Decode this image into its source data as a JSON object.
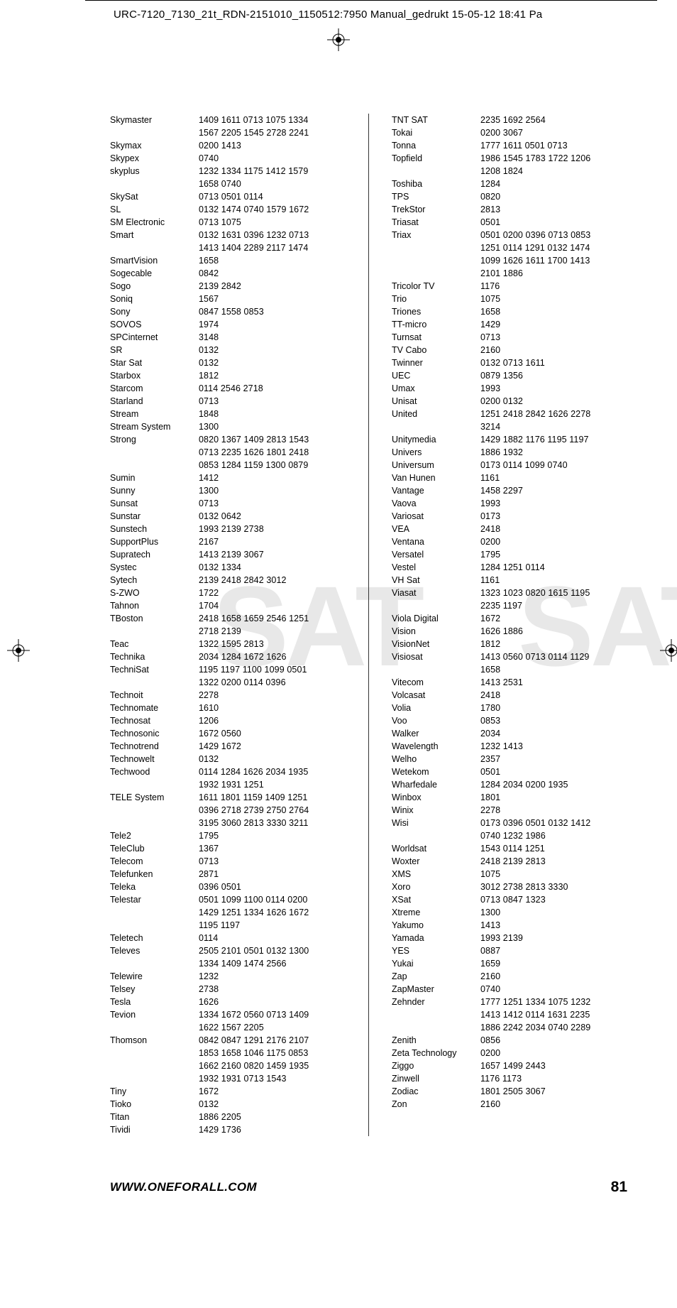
{
  "header": "URC-7120_7130_21t_RDN-2151010_1150512:7950 Manual_gedrukt  15-05-12  18:41  Pa",
  "watermark": "SAT",
  "footer": {
    "url": "WWW.ONEFORALL.COM",
    "page": "81"
  },
  "left": [
    {
      "b": "Skymaster",
      "c": "1409 1611 0713 1075 1334"
    },
    {
      "b": "",
      "c": "1567 2205 1545 2728 2241"
    },
    {
      "b": "Skymax",
      "c": "0200 1413"
    },
    {
      "b": "Skypex",
      "c": "0740"
    },
    {
      "b": "skyplus",
      "c": "1232 1334 1175 1412 1579"
    },
    {
      "b": "",
      "c": "1658 0740"
    },
    {
      "b": "SkySat",
      "c": "0713 0501 0114"
    },
    {
      "b": "SL",
      "c": "0132 1474 0740 1579 1672"
    },
    {
      "b": "SM Electronic",
      "c": "0713 1075"
    },
    {
      "b": "Smart",
      "c": "0132 1631 0396 1232 0713"
    },
    {
      "b": "",
      "c": "1413 1404 2289 2117 1474"
    },
    {
      "b": "SmartVision",
      "c": "1658"
    },
    {
      "b": "Sogecable",
      "c": "0842"
    },
    {
      "b": "Sogo",
      "c": "2139 2842"
    },
    {
      "b": "Soniq",
      "c": "1567"
    },
    {
      "b": "Sony",
      "c": "0847 1558 0853"
    },
    {
      "b": "SOVOS",
      "c": "1974"
    },
    {
      "b": "SPCinternet",
      "c": "3148"
    },
    {
      "b": "SR",
      "c": "0132"
    },
    {
      "b": "Star Sat",
      "c": "0132"
    },
    {
      "b": "Starbox",
      "c": "1812"
    },
    {
      "b": "Starcom",
      "c": "0114 2546 2718"
    },
    {
      "b": "Starland",
      "c": "0713"
    },
    {
      "b": "Stream",
      "c": "1848"
    },
    {
      "b": "Stream System",
      "c": "1300"
    },
    {
      "b": "Strong",
      "c": "0820 1367 1409 2813 1543"
    },
    {
      "b": "",
      "c": "0713 2235 1626 1801 2418"
    },
    {
      "b": "",
      "c": "0853 1284 1159 1300 0879"
    },
    {
      "b": "Sumin",
      "c": "1412"
    },
    {
      "b": "Sunny",
      "c": "1300"
    },
    {
      "b": "Sunsat",
      "c": "0713"
    },
    {
      "b": "Sunstar",
      "c": "0132 0642"
    },
    {
      "b": "Sunstech",
      "c": "1993 2139 2738"
    },
    {
      "b": "SupportPlus",
      "c": "2167"
    },
    {
      "b": "Supratech",
      "c": "1413 2139 3067"
    },
    {
      "b": "Systec",
      "c": "0132 1334"
    },
    {
      "b": "Sytech",
      "c": "2139 2418 2842 3012"
    },
    {
      "b": "S-ZWO",
      "c": "1722"
    },
    {
      "b": "Tahnon",
      "c": "1704"
    },
    {
      "b": "TBoston",
      "c": "2418 1658 1659 2546 1251"
    },
    {
      "b": "",
      "c": "2718 2139"
    },
    {
      "b": "Teac",
      "c": "1322 1595 2813"
    },
    {
      "b": "Technika",
      "c": "2034 1284 1672 1626"
    },
    {
      "b": "TechniSat",
      "c": "1195 1197 1100 1099 0501"
    },
    {
      "b": "",
      "c": "1322 0200 0114 0396"
    },
    {
      "b": "Technoit",
      "c": "2278"
    },
    {
      "b": "Technomate",
      "c": "1610"
    },
    {
      "b": "Technosat",
      "c": "1206"
    },
    {
      "b": "Technosonic",
      "c": "1672 0560"
    },
    {
      "b": "Technotrend",
      "c": "1429 1672"
    },
    {
      "b": "Technowelt",
      "c": "0132"
    },
    {
      "b": "Techwood",
      "c": "0114 1284 1626 2034 1935"
    },
    {
      "b": "",
      "c": "1932 1931 1251"
    },
    {
      "b": "TELE System",
      "c": "1611 1801 1159 1409 1251"
    },
    {
      "b": "",
      "c": "0396 2718 2739 2750 2764"
    },
    {
      "b": "",
      "c": "3195 3060 2813 3330 3211"
    },
    {
      "b": "Tele2",
      "c": "1795"
    },
    {
      "b": "TeleClub",
      "c": "1367"
    },
    {
      "b": "Telecom",
      "c": "0713"
    },
    {
      "b": "Telefunken",
      "c": "2871"
    },
    {
      "b": "Teleka",
      "c": "0396 0501"
    },
    {
      "b": "Telestar",
      "c": "0501 1099 1100 0114 0200"
    },
    {
      "b": "",
      "c": "1429 1251 1334 1626 1672"
    },
    {
      "b": "",
      "c": "1195 1197"
    },
    {
      "b": "Teletech",
      "c": "0114"
    },
    {
      "b": "Televes",
      "c": "2505 2101 0501 0132 1300"
    },
    {
      "b": "",
      "c": "1334 1409 1474 2566"
    },
    {
      "b": "Telewire",
      "c": "1232"
    },
    {
      "b": "Telsey",
      "c": "2738"
    },
    {
      "b": "Tesla",
      "c": "1626"
    },
    {
      "b": "Tevion",
      "c": "1334 1672 0560 0713 1409"
    },
    {
      "b": "",
      "c": "1622 1567 2205"
    },
    {
      "b": "Thomson",
      "c": "0842 0847 1291 2176 2107"
    },
    {
      "b": "",
      "c": "1853 1658 1046 1175 0853"
    },
    {
      "b": "",
      "c": "1662 2160 0820 1459 1935"
    },
    {
      "b": "",
      "c": "1932 1931 0713 1543"
    },
    {
      "b": "Tiny",
      "c": "1672"
    },
    {
      "b": "Tioko",
      "c": "0132"
    },
    {
      "b": "Titan",
      "c": "1886 2205"
    },
    {
      "b": "Tividi",
      "c": "1429 1736"
    }
  ],
  "right": [
    {
      "b": "TNT SAT",
      "c": "2235 1692 2564"
    },
    {
      "b": "Tokai",
      "c": "0200 3067"
    },
    {
      "b": "Tonna",
      "c": "1777 1611 0501 0713"
    },
    {
      "b": "Topfield",
      "c": "1986 1545 1783 1722 1206"
    },
    {
      "b": "",
      "c": "1208 1824"
    },
    {
      "b": "Toshiba",
      "c": "1284"
    },
    {
      "b": "TPS",
      "c": "0820"
    },
    {
      "b": "TrekStor",
      "c": "2813"
    },
    {
      "b": "Triasat",
      "c": "0501"
    },
    {
      "b": "Triax",
      "c": "0501 0200 0396 0713 0853"
    },
    {
      "b": "",
      "c": "1251 0114 1291 0132 1474"
    },
    {
      "b": "",
      "c": "1099 1626 1611 1700 1413"
    },
    {
      "b": "",
      "c": "2101 1886"
    },
    {
      "b": "Tricolor TV",
      "c": "1176"
    },
    {
      "b": "Trio",
      "c": "1075"
    },
    {
      "b": "Triones",
      "c": "1658"
    },
    {
      "b": "TT-micro",
      "c": "1429"
    },
    {
      "b": "Turnsat",
      "c": "0713"
    },
    {
      "b": "TV Cabo",
      "c": "2160"
    },
    {
      "b": "Twinner",
      "c": "0132 0713 1611"
    },
    {
      "b": "UEC",
      "c": "0879 1356"
    },
    {
      "b": "Umax",
      "c": "1993"
    },
    {
      "b": "Unisat",
      "c": "0200 0132"
    },
    {
      "b": "United",
      "c": "1251 2418 2842 1626 2278"
    },
    {
      "b": "",
      "c": "3214"
    },
    {
      "b": "Unitymedia",
      "c": "1429 1882 1176 1195 1197"
    },
    {
      "b": "Univers",
      "c": "1886 1932"
    },
    {
      "b": "Universum",
      "c": "0173 0114 1099 0740"
    },
    {
      "b": "Van Hunen",
      "c": "1161"
    },
    {
      "b": "Vantage",
      "c": "1458 2297"
    },
    {
      "b": "Vaova",
      "c": "1993"
    },
    {
      "b": "Variosat",
      "c": "0173"
    },
    {
      "b": "VEA",
      "c": "2418"
    },
    {
      "b": "Ventana",
      "c": "0200"
    },
    {
      "b": "Versatel",
      "c": "1795"
    },
    {
      "b": "Vestel",
      "c": "1284 1251 0114"
    },
    {
      "b": "VH Sat",
      "c": "1161"
    },
    {
      "b": "Viasat",
      "c": "1323 1023 0820 1615 1195"
    },
    {
      "b": "",
      "c": "2235 1197"
    },
    {
      "b": "Viola Digital",
      "c": "1672"
    },
    {
      "b": "Vision",
      "c": "1626 1886"
    },
    {
      "b": "VisionNet",
      "c": "1812"
    },
    {
      "b": "Visiosat",
      "c": "1413 0560 0713 0114 1129"
    },
    {
      "b": "",
      "c": "1658"
    },
    {
      "b": "Vitecom",
      "c": "1413 2531"
    },
    {
      "b": "Volcasat",
      "c": "2418"
    },
    {
      "b": "Volia",
      "c": "1780"
    },
    {
      "b": "Voo",
      "c": "0853"
    },
    {
      "b": "Walker",
      "c": "2034"
    },
    {
      "b": "Wavelength",
      "c": "1232 1413"
    },
    {
      "b": "Welho",
      "c": "2357"
    },
    {
      "b": "Wetekom",
      "c": "0501"
    },
    {
      "b": "Wharfedale",
      "c": "1284 2034 0200 1935"
    },
    {
      "b": "Winbox",
      "c": "1801"
    },
    {
      "b": "Winix",
      "c": "2278"
    },
    {
      "b": "Wisi",
      "c": "0173 0396 0501 0132 1412"
    },
    {
      "b": "",
      "c": "0740 1232 1986"
    },
    {
      "b": "Worldsat",
      "c": "1543 0114 1251"
    },
    {
      "b": "Woxter",
      "c": "2418 2139 2813"
    },
    {
      "b": "XMS",
      "c": "1075"
    },
    {
      "b": "Xoro",
      "c": "3012 2738 2813 3330"
    },
    {
      "b": "XSat",
      "c": "0713 0847 1323"
    },
    {
      "b": "Xtreme",
      "c": "1300"
    },
    {
      "b": "Yakumo",
      "c": "1413"
    },
    {
      "b": "Yamada",
      "c": "1993 2139"
    },
    {
      "b": "YES",
      "c": "0887"
    },
    {
      "b": "Yukai",
      "c": "1659"
    },
    {
      "b": "Zap",
      "c": "2160"
    },
    {
      "b": "ZapMaster",
      "c": "0740"
    },
    {
      "b": "Zehnder",
      "c": "1777 1251 1334 1075 1232"
    },
    {
      "b": "",
      "c": "1413 1412 0114 1631 2235"
    },
    {
      "b": "",
      "c": "1886 2242 2034 0740 2289"
    },
    {
      "b": "Zenith",
      "c": "0856"
    },
    {
      "b": "Zeta Technology",
      "c": "0200"
    },
    {
      "b": "Ziggo",
      "c": "1657 1499 2443"
    },
    {
      "b": "Zinwell",
      "c": "1176 1173"
    },
    {
      "b": "Zodiac",
      "c": "1801 2505 3067"
    },
    {
      "b": "Zon",
      "c": "2160"
    }
  ]
}
